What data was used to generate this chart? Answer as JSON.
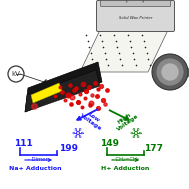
{
  "background_color": "#ffffff",
  "fig_size": [
    1.89,
    1.89
  ],
  "dpi": 100,
  "printer_label": "Solid Wax Printer",
  "kv_label": "kV",
  "low_voltage_label": "Low\nVoltage",
  "high_voltage_label": "High\nVoltage",
  "left_mass1": "111",
  "left_mass2": "199",
  "left_loss": "- Dimer",
  "left_adduct": "Na",
  "left_adduct_super": "+",
  "left_adduct_rest": " Adduction",
  "right_mass1": "149",
  "right_mass2": "177",
  "right_loss": "- CH₂=CH₂",
  "right_adduct": "H",
  "right_adduct_super": "+",
  "right_adduct_rest": " Adduction",
  "blue_color": "#1a1aff",
  "green_color": "#007700",
  "red_color": "#dd0000",
  "dark_gray": "#333333",
  "med_gray": "#888888",
  "light_gray": "#cccccc",
  "yellow_color": "#ffee00",
  "printer_gray": "#d8d8d8",
  "printer_dark": "#555555",
  "paper_color": "#f5f5f0",
  "detector_outer": "#808080",
  "detector_inner": "#b0b0b0"
}
